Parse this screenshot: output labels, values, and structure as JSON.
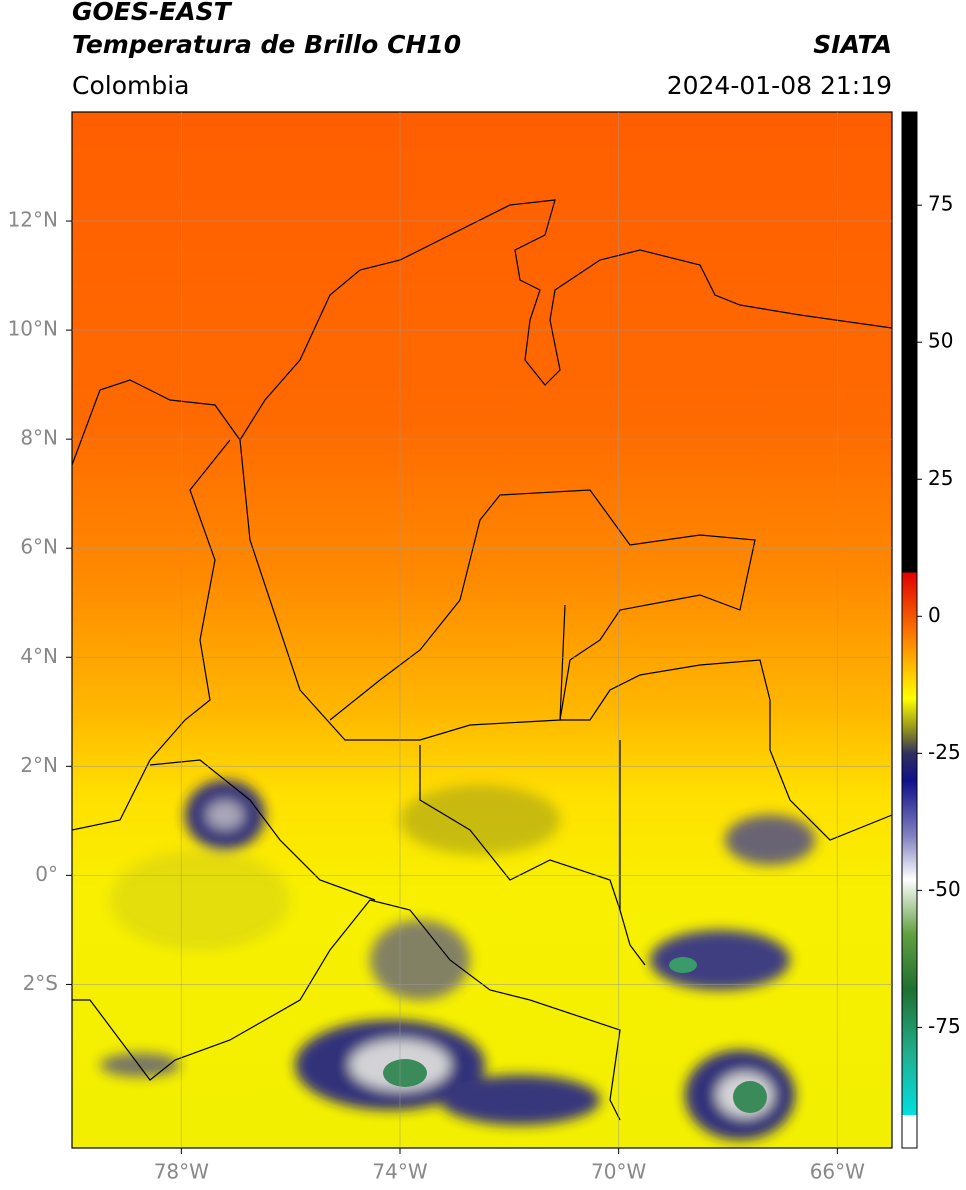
{
  "header": {
    "title": "GOES-EAST",
    "subtitle": "Temperatura de Brillo CH10",
    "source": "SIATA",
    "region": "Colombia",
    "datetime": "2024-01-08 21:19"
  },
  "map": {
    "xlim": [
      -80,
      -65
    ],
    "ylim": [
      -5,
      14
    ],
    "xticks": [
      {
        "value": -78,
        "label": "78°W"
      },
      {
        "value": -74,
        "label": "74°W"
      },
      {
        "value": -70,
        "label": "70°W"
      },
      {
        "value": -66,
        "label": "66°W"
      }
    ],
    "yticks": [
      {
        "value": 12,
        "label": "12°N"
      },
      {
        "value": 10,
        "label": "10°N"
      },
      {
        "value": 8,
        "label": "8°N"
      },
      {
        "value": 6,
        "label": "6°N"
      },
      {
        "value": 4,
        "label": "4°N"
      },
      {
        "value": 2,
        "label": "2°N"
      },
      {
        "value": 0,
        "label": "0°"
      },
      {
        "value": -2,
        "label": "2°S"
      }
    ],
    "grid": true
  },
  "colorbar": {
    "lim": [
      -97,
      92
    ],
    "ticks": [
      75,
      50,
      25,
      0,
      -25,
      -50,
      -75
    ],
    "stops": [
      {
        "value": 92,
        "color": "#000000"
      },
      {
        "value": 8,
        "color": "#000000"
      },
      {
        "value": 8,
        "color": "#e00000"
      },
      {
        "value": -5,
        "color": "#ff8c00"
      },
      {
        "value": -15,
        "color": "#ffff00"
      },
      {
        "value": -21,
        "color": "#8a8a20"
      },
      {
        "value": -25,
        "color": "#303060"
      },
      {
        "value": -30,
        "color": "#10108a"
      },
      {
        "value": -40,
        "color": "#8080c0"
      },
      {
        "value": -48,
        "color": "#ffffff"
      },
      {
        "value": -58,
        "color": "#60a040"
      },
      {
        "value": -68,
        "color": "#207030"
      },
      {
        "value": -80,
        "color": "#20b090"
      },
      {
        "value": -91,
        "color": "#00e0e0"
      },
      {
        "value": -91,
        "color": "#ffffff"
      },
      {
        "value": -97,
        "color": "#ffffff"
      }
    ]
  }
}
